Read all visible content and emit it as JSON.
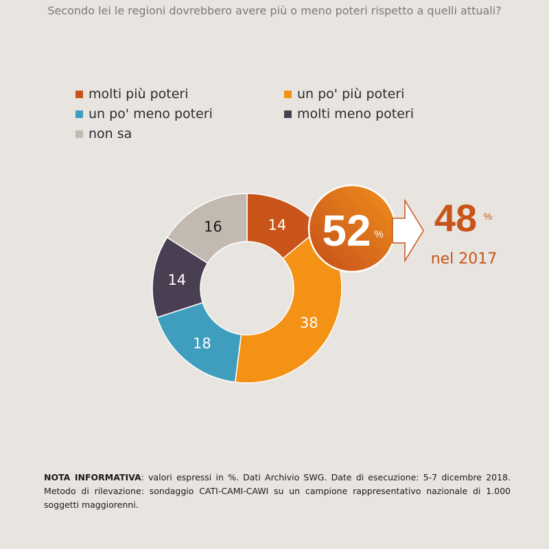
{
  "question": "Secondo lei le regioni dovrebbero avere più o meno poteri rispetto a quelli attuali?",
  "chart_data": {
    "type": "pie",
    "categories": [
      "molti più poteri",
      "un po' più poteri",
      "un po' meno poteri",
      "molti meno poteri",
      "non sa"
    ],
    "values": [
      14,
      38,
      18,
      14,
      16
    ],
    "colors": [
      "#c8541a",
      "#f39215",
      "#3f9ebd",
      "#4a3f52",
      "#c2b9b0"
    ],
    "label_colors": [
      "#ffffff",
      "#ffffff",
      "#ffffff",
      "#ffffff",
      "#1a1a1a"
    ],
    "legend": [
      {
        "label": "molti più poteri",
        "color": "#c8541a"
      },
      {
        "label": "un po' più poteri",
        "color": "#f39215"
      },
      {
        "label": "un po' meno poteri",
        "color": "#3f9ebd"
      },
      {
        "label": "molti meno poteri",
        "color": "#4a3f52"
      },
      {
        "label": "non sa",
        "color": "#c2b9b0"
      }
    ],
    "legend_placement": "top",
    "donut": true
  },
  "highlight": {
    "value": "52",
    "unit": "%",
    "compare_value": "48",
    "compare_unit": "%",
    "compare_label": "nel 2017",
    "color": "#c8541a"
  },
  "note": {
    "label": "NOTA INFORMATIVA",
    "text": ": valori espressi in %. Dati Archivio SWG. Date di esecuzione: 5-7 dicembre 2018. Metodo di rilevazione: sondaggio CATI-CAMI-CAWI su un campione rappresentativo nazionale di 1.000 soggetti maggiorenni."
  }
}
